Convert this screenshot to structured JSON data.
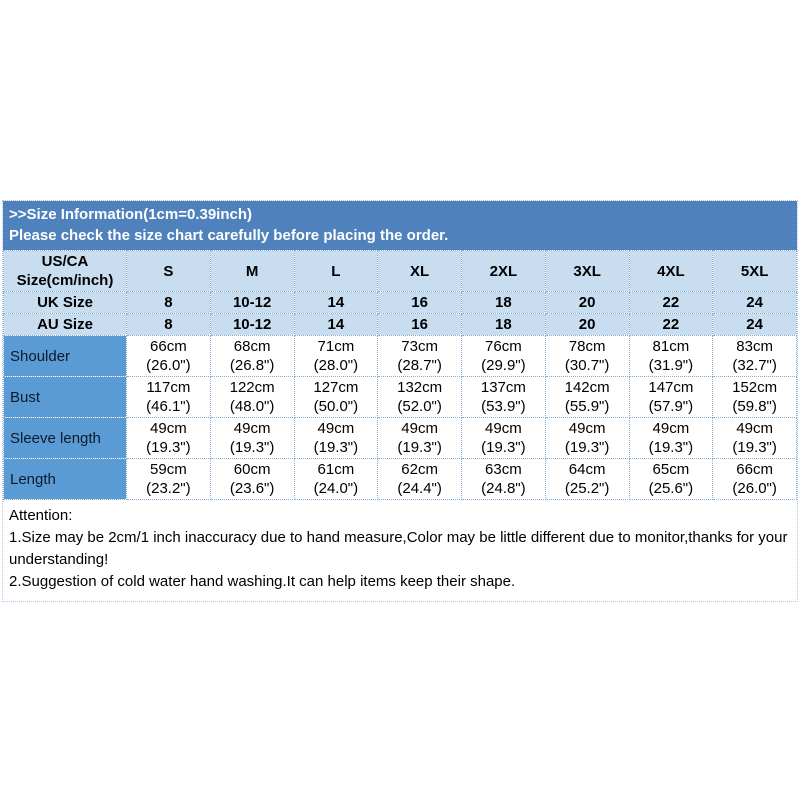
{
  "banner": {
    "line1": ">>Size Information(1cm=0.39inch)",
    "line2": "Please check the size chart carefully before placing the order."
  },
  "table": {
    "corner_label": "US/CA\nSize(cm/inch)",
    "size_headers": [
      "S",
      "M",
      "L",
      "XL",
      "2XL",
      "3XL",
      "4XL",
      "5XL"
    ],
    "uk_row": {
      "label": "UK Size",
      "values": [
        "8",
        "10-12",
        "14",
        "16",
        "18",
        "20",
        "22",
        "24"
      ]
    },
    "au_row": {
      "label": "AU Size",
      "values": [
        "8",
        "10-12",
        "14",
        "16",
        "18",
        "20",
        "22",
        "24"
      ]
    },
    "measure_rows": [
      {
        "label": "Shoulder",
        "values": [
          "66cm\n(26.0\")",
          "68cm\n(26.8\")",
          "71cm\n(28.0\")",
          "73cm\n(28.7\")",
          "76cm\n(29.9\")",
          "78cm\n(30.7\")",
          "81cm\n(31.9\")",
          "83cm\n(32.7\")"
        ]
      },
      {
        "label": "Bust",
        "values": [
          "117cm\n(46.1\")",
          "122cm\n(48.0\")",
          "127cm\n(50.0\")",
          "132cm\n(52.0\")",
          "137cm\n(53.9\")",
          "142cm\n(55.9\")",
          "147cm\n(57.9\")",
          "152cm\n(59.8\")"
        ]
      },
      {
        "label": "Sleeve length",
        "values": [
          "49cm\n(19.3\")",
          "49cm\n(19.3\")",
          "49cm\n(19.3\")",
          "49cm\n(19.3\")",
          "49cm\n(19.3\")",
          "49cm\n(19.3\")",
          "49cm\n(19.3\")",
          "49cm\n(19.3\")"
        ]
      },
      {
        "label": "Length",
        "values": [
          "59cm\n(23.2\")",
          "60cm\n(23.6\")",
          "61cm\n(24.0\")",
          "62cm\n(24.4\")",
          "63cm\n(24.8\")",
          "64cm\n(25.2\")",
          "65cm\n(25.6\")",
          "66cm\n(26.0\")"
        ]
      }
    ]
  },
  "attention": {
    "title": "Attention:",
    "line1": "1.Size may be 2cm/1 inch inaccuracy due to hand measure,Color may be little different due to monitor,thanks for your understanding!",
    "line2": "2.Suggestion of cold water hand washing.It can help items keep their shape."
  },
  "colors": {
    "banner_bg": "#4f81bd",
    "header_bg": "#c9ddf1",
    "label_column_bg": "#5b9bd5",
    "cell_border": "#84aed8",
    "banner_text": "#ffffff",
    "body_text": "#000000"
  }
}
